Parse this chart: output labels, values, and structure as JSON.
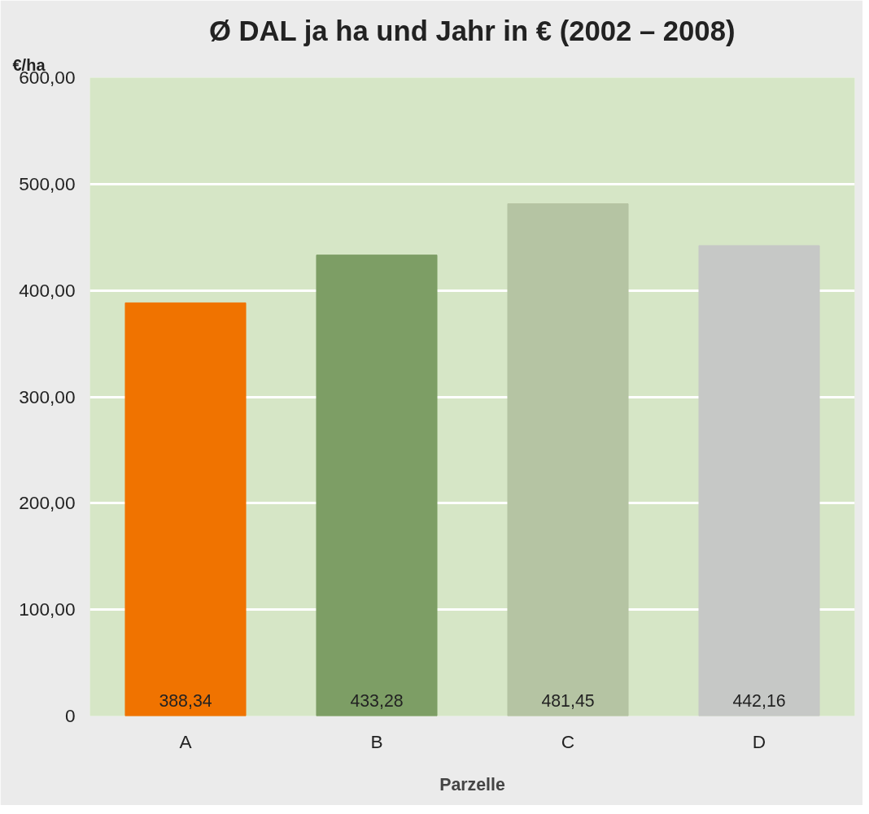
{
  "chart_data": {
    "type": "bar",
    "title": "Ø DAL ja ha und Jahr in € (2002 – 2008)",
    "ylabel": "€/ha",
    "xlabel": "Parzelle",
    "categories": [
      "A",
      "B",
      "C",
      "D"
    ],
    "values": [
      388.34,
      433.28,
      481.45,
      442.16
    ],
    "colors": [
      "#f07300",
      "#7d9e65",
      "#b5c4a3",
      "#c6c8c6"
    ],
    "value_labels": [
      "388,34",
      "433,28",
      "481,45",
      "442,16"
    ],
    "ylim": [
      0,
      600
    ],
    "yticks": [
      0,
      {
        "value": 100,
        "label": "100,00"
      },
      {
        "value": 200,
        "label": "200,00"
      },
      {
        "value": 300,
        "label": "300,00"
      },
      {
        "value": 400,
        "label": "400,00"
      },
      {
        "value": 500,
        "label": "500,00"
      },
      {
        "value": 600,
        "label": "600,00"
      }
    ],
    "grid": "y"
  }
}
